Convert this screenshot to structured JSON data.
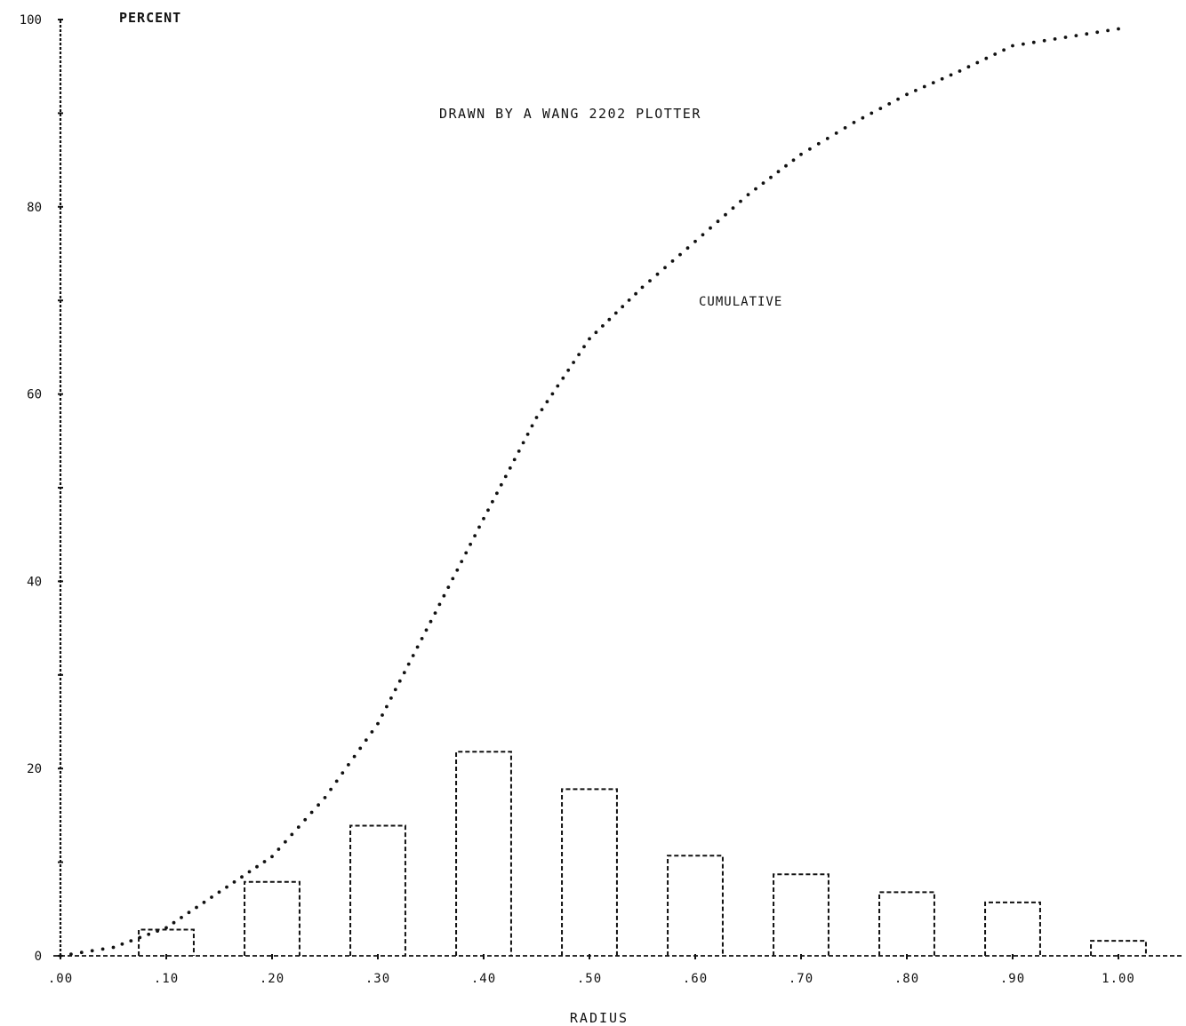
{
  "chart_data": {
    "type": "bar",
    "title": "DRAWN BY A WANG 2202 PLOTTER",
    "ylabel": "PERCENT",
    "xlabel": "RADIUS",
    "ylim": [
      0,
      100
    ],
    "xlim": [
      0,
      1.0
    ],
    "grid": false,
    "y_ticks": [
      "0",
      "20",
      "40",
      "60",
      "80",
      "100"
    ],
    "x_ticks": [
      ".00",
      ".10",
      ".20",
      ".30",
      ".40",
      ".50",
      ".60",
      ".70",
      ".80",
      ".90",
      "1.00"
    ],
    "categories": [
      0.1,
      0.2,
      0.3,
      0.4,
      0.5,
      0.6,
      0.7,
      0.8,
      0.9,
      1.0
    ],
    "series": [
      {
        "values": [
          2.8,
          7.9,
          13.9,
          21.8,
          17.8,
          10.7,
          8.7,
          6.8,
          5.7,
          1.6
        ]
      }
    ],
    "cumulative": {
      "label": "CUMULATIVE",
      "x": [
        0.0,
        0.05,
        0.1,
        0.15,
        0.2,
        0.25,
        0.3,
        0.35,
        0.4,
        0.45,
        0.5,
        0.55,
        0.6,
        0.65,
        0.7,
        0.75,
        0.8,
        0.85,
        0.9,
        0.95,
        1.0
      ],
      "y": [
        0.0,
        0.9,
        3.0,
        6.8,
        10.6,
        16.9,
        24.8,
        35.7,
        46.7,
        57.5,
        65.9,
        71.4,
        76.3,
        81.3,
        85.6,
        89.0,
        92.0,
        94.5,
        97.2,
        98.1,
        99.0
      ]
    }
  }
}
